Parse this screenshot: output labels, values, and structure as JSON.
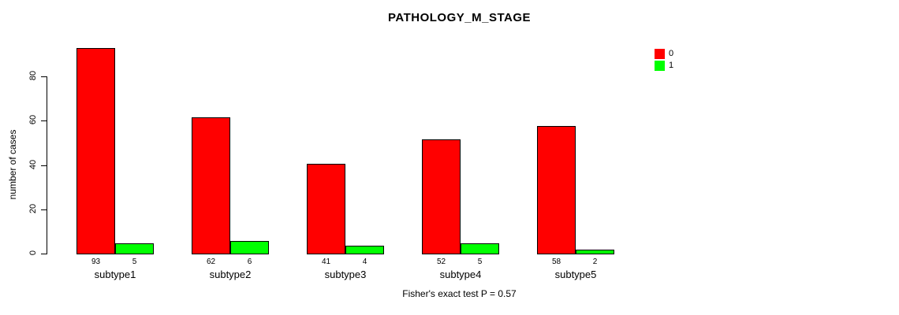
{
  "title": "PATHOLOGY_M_STAGE",
  "ylabel": "number of cases",
  "footer": "Fisher's exact test P = 0.57",
  "legend": [
    {
      "label": "0",
      "color": "#FF0000"
    },
    {
      "label": "1",
      "color": "#00FF00"
    }
  ],
  "chart_data": {
    "type": "bar",
    "title": "PATHOLOGY_M_STAGE",
    "xlabel": "",
    "ylabel": "number of cases",
    "categories": [
      "subtype1",
      "subtype2",
      "subtype3",
      "subtype4",
      "subtype5"
    ],
    "series": [
      {
        "name": "0",
        "color": "#FF0000",
        "values": [
          93,
          62,
          41,
          52,
          58
        ]
      },
      {
        "name": "1",
        "color": "#00FF00",
        "values": [
          5,
          6,
          4,
          5,
          2
        ]
      }
    ],
    "bar_count_labels": [
      [
        "93",
        "62",
        "41",
        "52",
        "58"
      ],
      [
        "5",
        "6",
        "4",
        "5",
        "2"
      ]
    ],
    "yticks": [
      0,
      20,
      40,
      60,
      80
    ],
    "ylim": [
      0,
      93
    ],
    "grid": false,
    "legend_position": "top-right",
    "annotation": "Fisher's exact test P = 0.57"
  }
}
